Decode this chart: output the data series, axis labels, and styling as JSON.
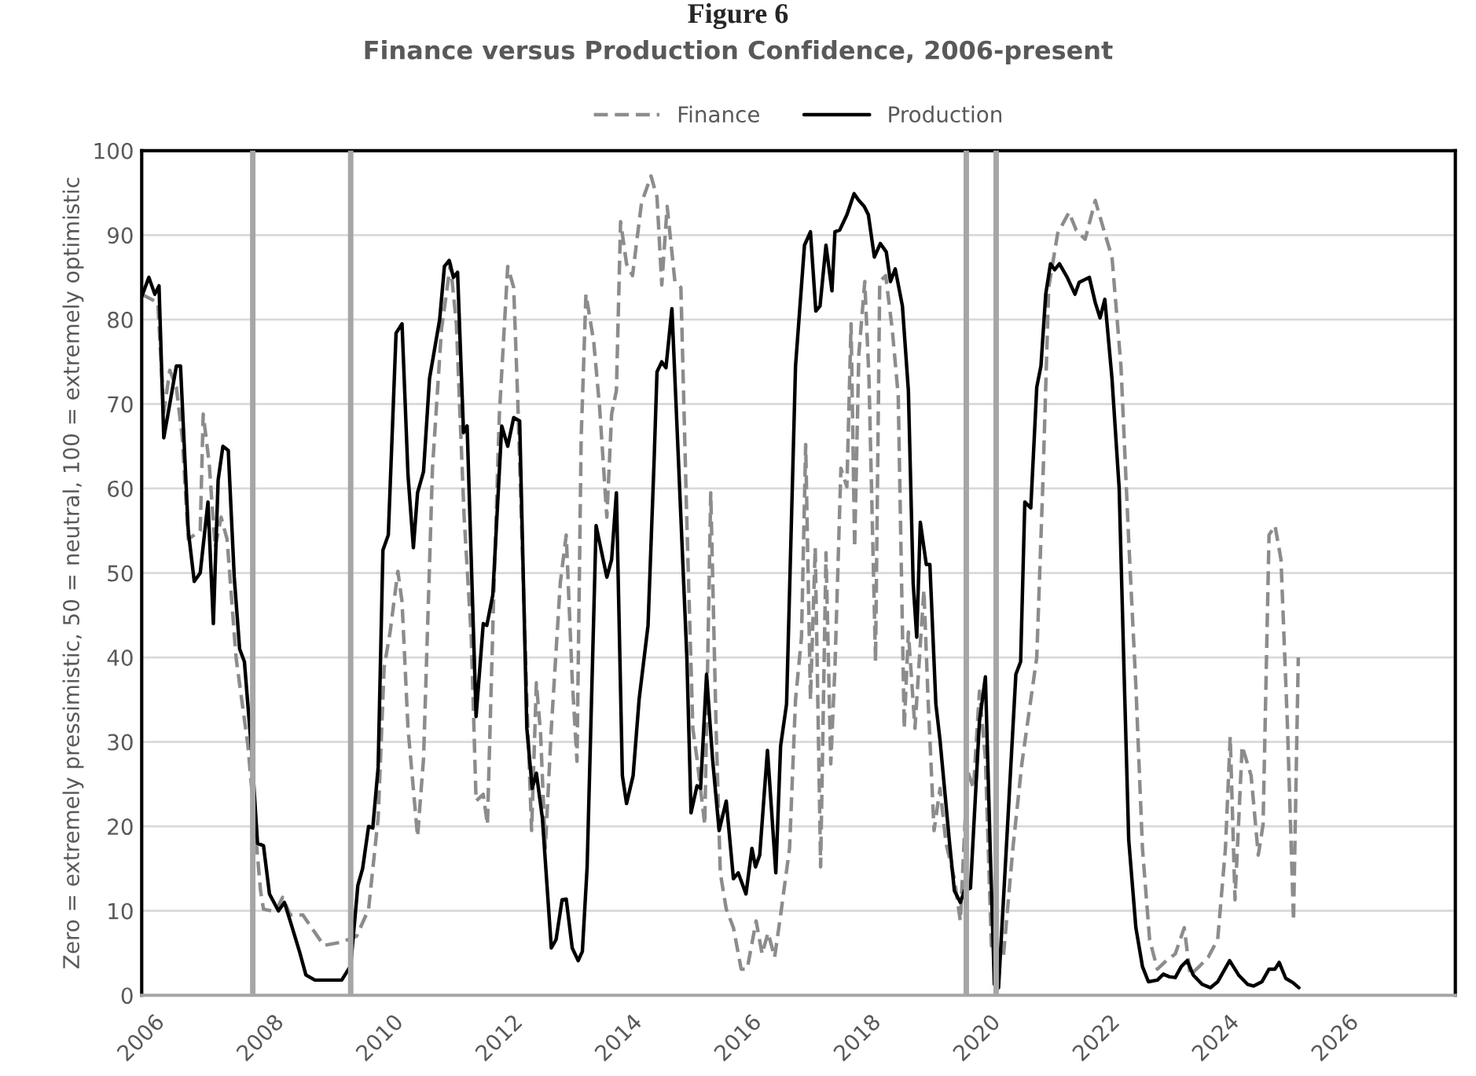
{
  "chart_data": {
    "type": "line",
    "title": "Finance versus Production Confidence, 2006-present",
    "ylabel": "Zero = extremely pressimistic, 50 = neutral, 100 = extremely optimistic",
    "annotations": [
      "Figure 6"
    ],
    "xlim": [
      2006,
      2028
    ],
    "xticks": [
      2006,
      2008,
      2010,
      2012,
      2014,
      2016,
      2018,
      2020,
      2022,
      2024,
      2026
    ],
    "ylim": [
      0,
      100
    ],
    "yticks": [
      0,
      10,
      20,
      30,
      40,
      50,
      60,
      70,
      80,
      90,
      100
    ],
    "grid": "y",
    "legend": "top",
    "marker": "none",
    "ref_lines": [
      {
        "axis": "x",
        "value": 2007.86,
        "color": "#a6a6a6"
      },
      {
        "axis": "x",
        "value": 2009.5,
        "color": "#a6a6a6"
      },
      {
        "axis": "x",
        "value": 2019.81,
        "color": "#a6a6a6"
      },
      {
        "axis": "x",
        "value": 2020.31,
        "color": "#a6a6a6"
      }
    ],
    "series": [
      {
        "name": "Finance",
        "color": "#8c8c8c",
        "line_style": "dashed",
        "x": [
          2006.0,
          2006.27,
          2006.37,
          2006.47,
          2006.58,
          2006.68,
          2006.78,
          2006.98,
          2007.03,
          2007.13,
          2007.23,
          2007.33,
          2007.43,
          2007.58,
          2007.78,
          2007.99,
          2008.04,
          2008.24,
          2008.36,
          2008.49,
          2008.7,
          2009.05,
          2009.35,
          2009.6,
          2009.8,
          2009.96,
          2010.06,
          2010.16,
          2010.29,
          2010.36,
          2010.46,
          2010.62,
          2010.72,
          2010.87,
          2011.02,
          2011.17,
          2011.27,
          2011.4,
          2011.52,
          2011.6,
          2011.72,
          2011.79,
          2011.89,
          2011.99,
          2012.13,
          2012.23,
          2012.3,
          2012.45,
          2012.53,
          2012.61,
          2012.68,
          2012.76,
          2012.86,
          2013.01,
          2013.11,
          2013.21,
          2013.29,
          2013.36,
          2013.44,
          2013.57,
          2013.67,
          2013.79,
          2013.87,
          2013.95,
          2014.02,
          2014.12,
          2014.22,
          2014.37,
          2014.53,
          2014.63,
          2014.71,
          2014.8,
          2014.93,
          2015.03,
          2015.13,
          2015.23,
          2015.3,
          2015.43,
          2015.53,
          2015.62,
          2015.69,
          2015.79,
          2015.91,
          2016.04,
          2016.14,
          2016.29,
          2016.39,
          2016.49,
          2016.6,
          2016.7,
          2016.85,
          2016.95,
          2017.05,
          2017.12,
          2017.2,
          2017.28,
          2017.37,
          2017.46,
          2017.54,
          2017.61,
          2017.71,
          2017.81,
          2017.88,
          2017.94,
          2018.01,
          2018.11,
          2018.18,
          2018.29,
          2018.36,
          2018.46,
          2018.57,
          2018.67,
          2018.77,
          2018.84,
          2018.95,
          2019.04,
          2019.1,
          2019.17,
          2019.27,
          2019.37,
          2019.47,
          2019.61,
          2019.71,
          2019.83,
          2019.93,
          2020.03,
          2020.13,
          2020.23,
          2020.33,
          2020.43,
          2020.59,
          2020.74,
          2020.89,
          2020.99,
          2021.09,
          2021.19,
          2021.34,
          2021.53,
          2021.65,
          2021.8,
          2021.97,
          2022.13,
          2022.25,
          2022.4,
          2022.53,
          2022.65,
          2022.76,
          2022.88,
          2023.01,
          2023.16,
          2023.31,
          2023.46,
          2023.56,
          2023.71,
          2023.86,
          2024.02,
          2024.15,
          2024.23,
          2024.31,
          2024.43,
          2024.58,
          2024.7,
          2024.78,
          2024.88,
          2024.98,
          2025.08,
          2025.19,
          2025.29,
          2025.37
        ],
        "values": [
          83,
          82,
          69,
          74,
          72,
          66,
          54,
          55,
          68.8,
          63,
          53,
          56.6,
          54,
          40,
          29.5,
          12.4,
          10.2,
          9.9,
          11.6,
          9.5,
          9.5,
          5.9,
          6.3,
          7,
          10.2,
          21,
          38.8,
          43,
          50.2,
          46.6,
          31.6,
          18.8,
          28,
          62.4,
          78.8,
          86.6,
          79.5,
          56.6,
          42.4,
          23,
          23.8,
          20.2,
          46,
          68.8,
          86.3,
          83.8,
          70,
          35,
          19.5,
          37,
          31,
          17.4,
          31.6,
          48.8,
          54.5,
          37.4,
          27.7,
          66,
          83,
          77.4,
          69.5,
          56.6,
          68.8,
          71.6,
          91.6,
          86.6,
          85.2,
          93.8,
          97,
          94.5,
          84.1,
          93.4,
          84.5,
          83.8,
          56,
          31.6,
          28,
          20.2,
          59.5,
          31.6,
          14.5,
          10.2,
          8,
          3.1,
          3.1,
          8.8,
          4.9,
          7.4,
          4.5,
          9.5,
          17.4,
          35,
          42.4,
          65.2,
          35,
          53,
          15.2,
          52.4,
          27.4,
          38.8,
          62.4,
          60.2,
          79.5,
          53,
          75.9,
          84.5,
          73,
          39.5,
          84.5,
          85.2,
          78.8,
          71,
          31.6,
          43,
          31.6,
          41.6,
          48,
          35,
          19.5,
          24.5,
          18,
          13.8,
          8.8,
          26.6,
          24.5,
          36,
          28,
          5.9,
          3.8,
          4.5,
          17.4,
          27.4,
          35,
          40,
          60.2,
          83.8,
          90.2,
          92.7,
          90.6,
          89.5,
          94.1,
          90.2,
          87.4,
          74.5,
          53.8,
          36.6,
          17.4,
          6.6,
          3.1,
          4.1,
          4.9,
          8,
          2.4,
          3.4,
          4.5,
          6.6,
          17.4,
          30.6,
          11.3,
          29.5,
          26,
          16.6,
          20.2,
          54.5,
          55.6,
          51.6,
          31.6,
          8.8,
          40
        ]
      },
      {
        "name": "Production",
        "color": "#000000",
        "line_style": "solid",
        "x": [
          2006.0,
          2006.12,
          2006.22,
          2006.29,
          2006.37,
          2006.47,
          2006.58,
          2006.65,
          2006.78,
          2006.88,
          2006.98,
          2007.11,
          2007.2,
          2007.28,
          2007.36,
          2007.45,
          2007.55,
          2007.64,
          2007.72,
          2007.84,
          2007.94,
          2008.04,
          2008.14,
          2008.29,
          2008.39,
          2008.5,
          2008.65,
          2008.75,
          2008.9,
          2009.35,
          2009.5,
          2009.62,
          2009.7,
          2009.8,
          2009.87,
          2009.96,
          2010.04,
          2010.13,
          2010.26,
          2010.36,
          2010.46,
          2010.55,
          2010.62,
          2010.72,
          2010.82,
          2010.99,
          2011.07,
          2011.15,
          2011.22,
          2011.29,
          2011.39,
          2011.45,
          2011.6,
          2011.72,
          2011.78,
          2011.88,
          2012.03,
          2012.13,
          2012.23,
          2012.33,
          2012.45,
          2012.54,
          2012.61,
          2012.71,
          2012.86,
          2012.94,
          2013.04,
          2013.11,
          2013.21,
          2013.31,
          2013.38,
          2013.46,
          2013.61,
          2013.79,
          2013.87,
          2013.95,
          2014.05,
          2014.12,
          2014.23,
          2014.33,
          2014.48,
          2014.58,
          2014.63,
          2014.71,
          2014.78,
          2014.88,
          2015.03,
          2015.13,
          2015.2,
          2015.3,
          2015.36,
          2015.46,
          2015.56,
          2015.67,
          2015.79,
          2015.91,
          2015.99,
          2016.12,
          2016.22,
          2016.28,
          2016.35,
          2016.48,
          2016.62,
          2016.7,
          2016.8,
          2016.95,
          2017.1,
          2017.2,
          2017.29,
          2017.36,
          2017.46,
          2017.56,
          2017.61,
          2017.69,
          2017.81,
          2017.93,
          2018.01,
          2018.1,
          2018.17,
          2018.27,
          2018.37,
          2018.47,
          2018.54,
          2018.62,
          2018.74,
          2018.84,
          2018.92,
          2018.98,
          2019.04,
          2019.14,
          2019.2,
          2019.3,
          2019.37,
          2019.53,
          2019.61,
          2019.71,
          2019.78,
          2019.88,
          2020.03,
          2020.13,
          2020.21,
          2020.28,
          2020.35,
          2020.48,
          2020.64,
          2020.72,
          2020.79,
          2020.89,
          2020.99,
          2021.06,
          2021.14,
          2021.22,
          2021.29,
          2021.37,
          2021.5,
          2021.63,
          2021.7,
          2021.87,
          2021.97,
          2022.05,
          2022.13,
          2022.25,
          2022.37,
          2022.45,
          2022.53,
          2022.65,
          2022.76,
          2022.86,
          2023.01,
          2023.11,
          2023.21,
          2023.31,
          2023.41,
          2023.51,
          2023.61,
          2023.76,
          2023.9,
          2024.02,
          2024.22,
          2024.37,
          2024.52,
          2024.62,
          2024.76,
          2024.88,
          2024.98,
          2025.05,
          2025.16,
          2025.28,
          2025.38
        ],
        "values": [
          82.7,
          85,
          83,
          84,
          66,
          70,
          74.5,
          74.5,
          55,
          49,
          50,
          58.4,
          44,
          61,
          65,
          64.5,
          49.5,
          41,
          39.5,
          29,
          18,
          17.7,
          12,
          10,
          11,
          8.5,
          5,
          2.4,
          1.8,
          1.8,
          3.5,
          13,
          15,
          20,
          19.8,
          27,
          52.7,
          54.5,
          78.4,
          79.5,
          61.6,
          53,
          59.5,
          62,
          73,
          80,
          86.3,
          87,
          85,
          85.6,
          66.6,
          67.4,
          33,
          44,
          43.8,
          47.4,
          67.4,
          65,
          68.4,
          68,
          31.6,
          24.5,
          26.3,
          21,
          5.6,
          6.6,
          11.3,
          11.4,
          5.6,
          4.1,
          5.2,
          15.2,
          55.6,
          49.5,
          51.6,
          59.5,
          26,
          22.7,
          26,
          35,
          43.8,
          63,
          73.8,
          75,
          74.3,
          81.3,
          56.6,
          40,
          21.6,
          24.8,
          24.5,
          38,
          28,
          19.5,
          23,
          13.8,
          14.5,
          12,
          17.4,
          15.2,
          16.6,
          29,
          14.5,
          29.5,
          34.5,
          74.5,
          88.8,
          90.4,
          81,
          81.6,
          88.8,
          83.4,
          90.4,
          90.6,
          92.4,
          94.9,
          94.1,
          93.4,
          92.4,
          87.4,
          89,
          88,
          84.5,
          86,
          81.6,
          71.6,
          48.8,
          42.4,
          56,
          51,
          51,
          34.5,
          30.2,
          18,
          12.4,
          11,
          12.4,
          12.7,
          32.4,
          37.7,
          17.4,
          1.3,
          0.9,
          17.4,
          38,
          39.5,
          58.4,
          57.7,
          72,
          74.5,
          83,
          86.6,
          85.9,
          86.6,
          85,
          83,
          84.4,
          85,
          82,
          80.2,
          82.4,
          73,
          60,
          38.8,
          18.4,
          8,
          3.4,
          1.6,
          1.8,
          2.5,
          2.2,
          2.1,
          3.4,
          4.1,
          2.4,
          1.3,
          0.9,
          1.6,
          4.1,
          2.4,
          1.3,
          1.1,
          1.6,
          3.1,
          3.1,
          3.9,
          2,
          1.5,
          0.9
        ]
      }
    ]
  }
}
